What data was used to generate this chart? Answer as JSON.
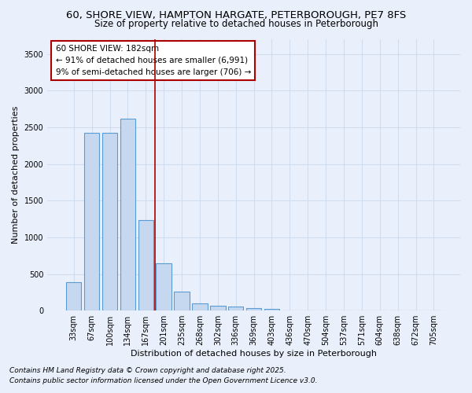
{
  "title_line1": "60, SHORE VIEW, HAMPTON HARGATE, PETERBOROUGH, PE7 8FS",
  "title_line2": "Size of property relative to detached houses in Peterborough",
  "xlabel": "Distribution of detached houses by size in Peterborough",
  "ylabel": "Number of detached properties",
  "categories": [
    "33sqm",
    "67sqm",
    "100sqm",
    "134sqm",
    "167sqm",
    "201sqm",
    "235sqm",
    "268sqm",
    "302sqm",
    "336sqm",
    "369sqm",
    "403sqm",
    "436sqm",
    "470sqm",
    "504sqm",
    "537sqm",
    "571sqm",
    "604sqm",
    "638sqm",
    "672sqm",
    "705sqm"
  ],
  "values": [
    390,
    2420,
    2420,
    2620,
    1240,
    650,
    260,
    100,
    70,
    55,
    35,
    20,
    5,
    5,
    5,
    5,
    0,
    0,
    0,
    0,
    0
  ],
  "bar_color": "#c5d8f0",
  "bar_edge_color": "#5a9bd4",
  "vline_x": 4.5,
  "vline_color": "#aa0000",
  "annotation_text": "60 SHORE VIEW: 182sqm\n← 91% of detached houses are smaller (6,991)\n9% of semi-detached houses are larger (706) →",
  "box_edge_color": "#aa0000",
  "ylim": [
    0,
    3700
  ],
  "yticks": [
    0,
    500,
    1000,
    1500,
    2000,
    2500,
    3000,
    3500
  ],
  "background_color": "#eaf0fb",
  "grid_color": "#d0ddef",
  "footer_line1": "Contains HM Land Registry data © Crown copyright and database right 2025.",
  "footer_line2": "Contains public sector information licensed under the Open Government Licence v3.0.",
  "title_fontsize": 9.5,
  "subtitle_fontsize": 8.5,
  "tick_fontsize": 7,
  "label_fontsize": 8,
  "annotation_fontsize": 7.5,
  "footer_fontsize": 6.5
}
